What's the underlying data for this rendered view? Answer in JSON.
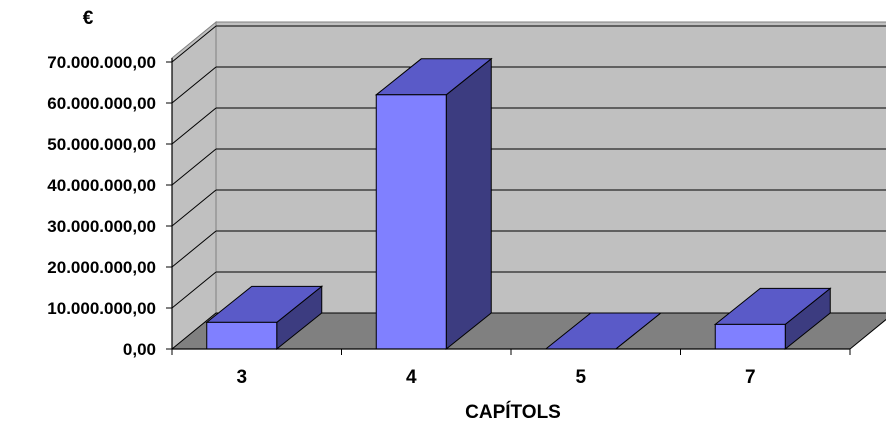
{
  "chart_data": {
    "type": "bar",
    "style": "3d-column",
    "title": "",
    "ylabel": "€",
    "xlabel": "CAPÍTOLS",
    "categories": [
      "3",
      "4",
      "5",
      "7"
    ],
    "values": [
      6500000,
      62000000,
      0,
      6000000
    ],
    "ylim": [
      0,
      70000000
    ],
    "yticks": [
      0,
      10000000,
      20000000,
      30000000,
      40000000,
      50000000,
      60000000,
      70000000
    ],
    "ytick_labels": [
      "0,00",
      "10.000.000,00",
      "20.000.000,00",
      "30.000.000,00",
      "40.000.000,00",
      "50.000.000,00",
      "60.000.000,00",
      "70.000.000,00"
    ],
    "grid": true,
    "legend": "none",
    "colors": {
      "bar_front": "#8080ff",
      "bar_top": "#5a5ac8",
      "bar_side": "#3c3c80",
      "back_wall": "#c0c0c0",
      "side_wall": "#c0c0c0",
      "floor": "#808080",
      "grid": "#000000"
    }
  }
}
